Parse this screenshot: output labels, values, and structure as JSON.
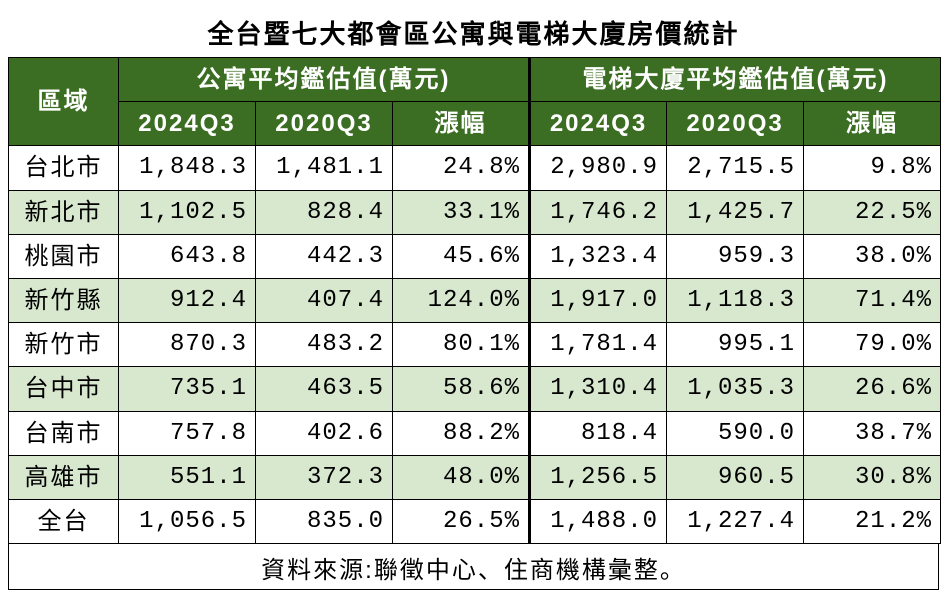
{
  "title": "全台暨七大都會區公寓與電梯大廈房價統計",
  "source": "資料來源:聯徵中心、住商機構彙整。",
  "colors": {
    "header_bg": "#3b6e22",
    "header_fg": "#ffffff",
    "row_even_bg": "#d8e8cf",
    "row_odd_bg": "#ffffff",
    "border": "#000000"
  },
  "table": {
    "type": "table",
    "region_header": "區域",
    "group1_header": "公寓平均鑑估值(萬元)",
    "group2_header": "電梯大廈平均鑑估值(萬元)",
    "sub_headers": [
      "2024Q3",
      "2020Q3",
      "漲幅"
    ],
    "columns": [
      "region",
      "apt_2024q3",
      "apt_2020q3",
      "apt_chg",
      "elev_2024q3",
      "elev_2020q3",
      "elev_chg"
    ],
    "rows": [
      {
        "region": "台北市",
        "apt_2024q3": "1,848.3",
        "apt_2020q3": "1,481.1",
        "apt_chg": "24.8%",
        "elev_2024q3": "2,980.9",
        "elev_2020q3": "2,715.5",
        "elev_chg": "9.8%"
      },
      {
        "region": "新北市",
        "apt_2024q3": "1,102.5",
        "apt_2020q3": "828.4",
        "apt_chg": "33.1%",
        "elev_2024q3": "1,746.2",
        "elev_2020q3": "1,425.7",
        "elev_chg": "22.5%"
      },
      {
        "region": "桃園市",
        "apt_2024q3": "643.8",
        "apt_2020q3": "442.3",
        "apt_chg": "45.6%",
        "elev_2024q3": "1,323.4",
        "elev_2020q3": "959.3",
        "elev_chg": "38.0%"
      },
      {
        "region": "新竹縣",
        "apt_2024q3": "912.4",
        "apt_2020q3": "407.4",
        "apt_chg": "124.0%",
        "elev_2024q3": "1,917.0",
        "elev_2020q3": "1,118.3",
        "elev_chg": "71.4%"
      },
      {
        "region": "新竹市",
        "apt_2024q3": "870.3",
        "apt_2020q3": "483.2",
        "apt_chg": "80.1%",
        "elev_2024q3": "1,781.4",
        "elev_2020q3": "995.1",
        "elev_chg": "79.0%"
      },
      {
        "region": "台中市",
        "apt_2024q3": "735.1",
        "apt_2020q3": "463.5",
        "apt_chg": "58.6%",
        "elev_2024q3": "1,310.4",
        "elev_2020q3": "1,035.3",
        "elev_chg": "26.6%"
      },
      {
        "region": "台南市",
        "apt_2024q3": "757.8",
        "apt_2020q3": "402.6",
        "apt_chg": "88.2%",
        "elev_2024q3": "818.4",
        "elev_2020q3": "590.0",
        "elev_chg": "38.7%"
      },
      {
        "region": "高雄市",
        "apt_2024q3": "551.1",
        "apt_2020q3": "372.3",
        "apt_chg": "48.0%",
        "elev_2024q3": "1,256.5",
        "elev_2020q3": "960.5",
        "elev_chg": "30.8%"
      },
      {
        "region": "全台",
        "apt_2024q3": "1,056.5",
        "apt_2020q3": "835.0",
        "apt_chg": "26.5%",
        "elev_2024q3": "1,488.0",
        "elev_2020q3": "1,227.4",
        "elev_chg": "21.2%"
      }
    ]
  }
}
